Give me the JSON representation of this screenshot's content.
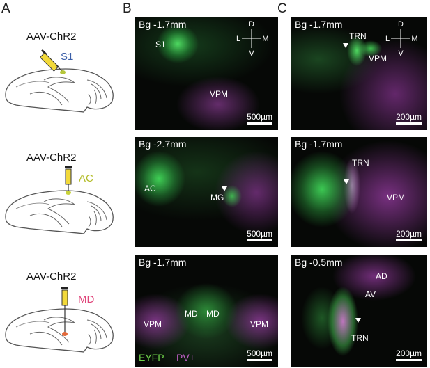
{
  "panel_a": {
    "label": "A",
    "injections": [
      {
        "virus": "AAV-ChR2",
        "target": "S1"
      },
      {
        "virus": "AAV-ChR2",
        "target": "AC"
      },
      {
        "virus": "AAV-ChR2",
        "target": "MD"
      }
    ]
  },
  "panel_b": {
    "label": "B",
    "images": [
      {
        "coordinate": "Bg -1.7mm",
        "scale_bar": "500µm",
        "orientation": {
          "dorsal": "D",
          "lateral": "L",
          "medial": "M",
          "ventral": "V"
        },
        "labels": [
          "S1",
          "VPM"
        ]
      },
      {
        "coordinate": "Bg -2.7mm",
        "scale_bar": "500µm",
        "labels": [
          "AC",
          "MG"
        ]
      },
      {
        "coordinate": "Bg -1.7mm",
        "scale_bar": "500µm",
        "labels": [
          "VPM",
          "MD",
          "MD",
          "VPM"
        ],
        "legend": [
          "EYFP",
          "PV+"
        ]
      }
    ]
  },
  "panel_c": {
    "label": "C",
    "images": [
      {
        "coordinate": "Bg -1.7mm",
        "scale_bar": "200µm",
        "orientation": {
          "dorsal": "D",
          "lateral": "L",
          "medial": "M",
          "ventral": "V"
        },
        "labels": [
          "TRN",
          "VPM"
        ]
      },
      {
        "coordinate": "Bg -1.7mm",
        "scale_bar": "200µm",
        "labels": [
          "TRN",
          "VPM"
        ]
      },
      {
        "coordinate": "Bg -0.5mm",
        "scale_bar": "200µm",
        "labels": [
          "AD",
          "AV",
          "TRN"
        ]
      }
    ]
  }
}
